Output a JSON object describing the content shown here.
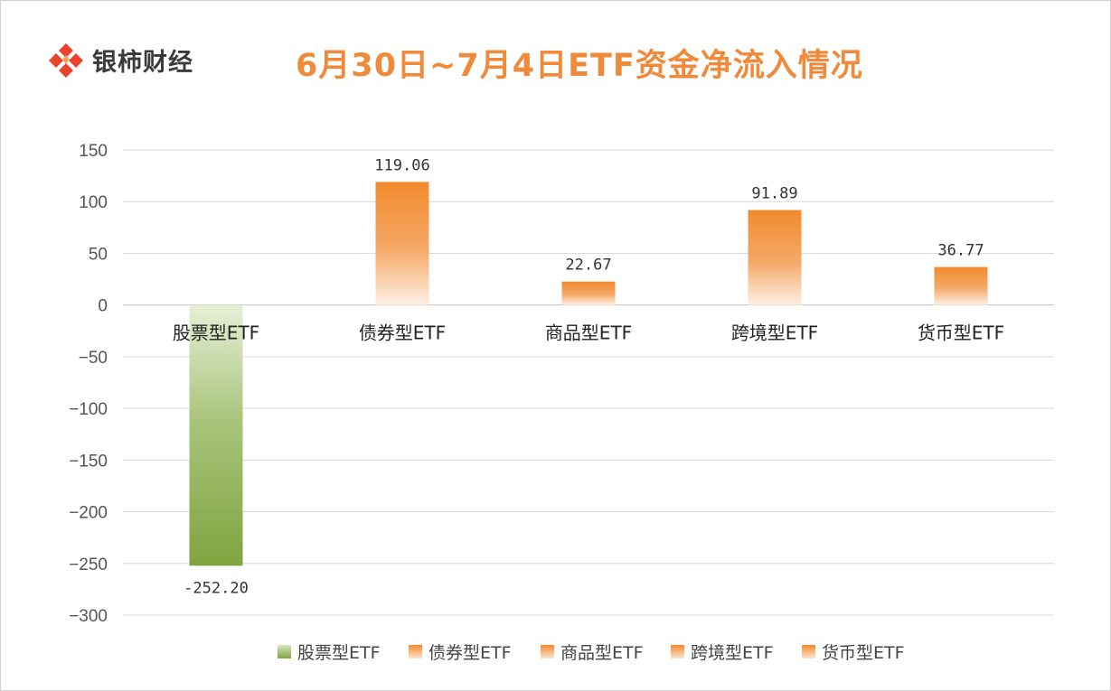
{
  "brand": {
    "name": "银柿财经",
    "logo_color": "#e8432d"
  },
  "chart_data": {
    "type": "bar",
    "title": "6月30日~7月4日ETF资金净流入情况",
    "xlabel": "",
    "ylabel": "",
    "categories": [
      "股票型ETF",
      "债券型ETF",
      "商品型ETF",
      "跨境型ETF",
      "货币型ETF"
    ],
    "values": [
      -252.2,
      119.06,
      22.67,
      91.89,
      36.77
    ],
    "data_labels": [
      "-252.20",
      "119.06",
      "22.67",
      "91.89",
      "36.77"
    ],
    "ylim": [
      -300,
      150
    ],
    "yticks": [
      150,
      100,
      50,
      0,
      -50,
      -100,
      -150,
      -200,
      -250,
      -300
    ],
    "ytick_labels": [
      "150",
      "100",
      "50",
      "0",
      "−50",
      "−100",
      "−150",
      "−200",
      "−250",
      "−300"
    ],
    "grid": true,
    "legend_position": "bottom",
    "colors": {
      "green": "#7fa540",
      "orange": "#f28a2e"
    },
    "bar_colors": [
      "green",
      "orange",
      "orange",
      "orange",
      "orange"
    ],
    "title_color": "#f08a3a"
  }
}
